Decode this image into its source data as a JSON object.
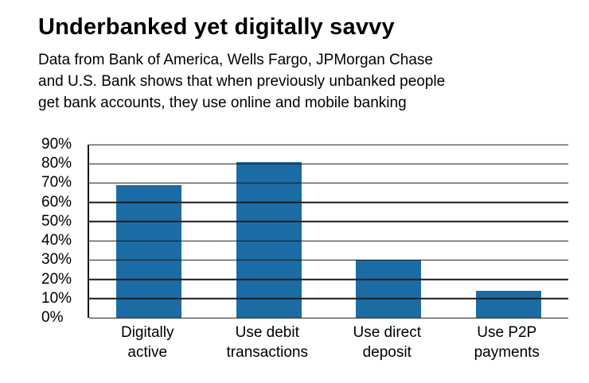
{
  "header": {
    "title": "Underbanked yet digitally savvy",
    "subtitle_lines": [
      "Data from Bank of America, Wells Fargo, JPMorgan Chase",
      "and U.S. Bank shows that when previously unbanked people",
      "get bank accounts, they use online and mobile banking"
    ]
  },
  "chart_data": {
    "type": "bar",
    "title": "Underbanked yet digitally savvy",
    "categories": [
      "Digitally active",
      "Use debit transactions",
      "Use direct deposit",
      "Use P2P payments"
    ],
    "category_lines": [
      [
        "Digitally",
        "active"
      ],
      [
        "Use debit",
        "transactions"
      ],
      [
        "Use direct",
        "deposit"
      ],
      [
        "Use P2P",
        "payments"
      ]
    ],
    "values": [
      69,
      81,
      30,
      14
    ],
    "ylim": [
      0,
      90
    ],
    "ytick_step": 10,
    "ytick_labels": [
      "0%",
      "10%",
      "20%",
      "30%",
      "40%",
      "50%",
      "60%",
      "70%",
      "80%",
      "90%"
    ],
    "bar_color": "#1b6ca5",
    "grid": true,
    "legend": "none",
    "xlabel": "",
    "ylabel": ""
  }
}
